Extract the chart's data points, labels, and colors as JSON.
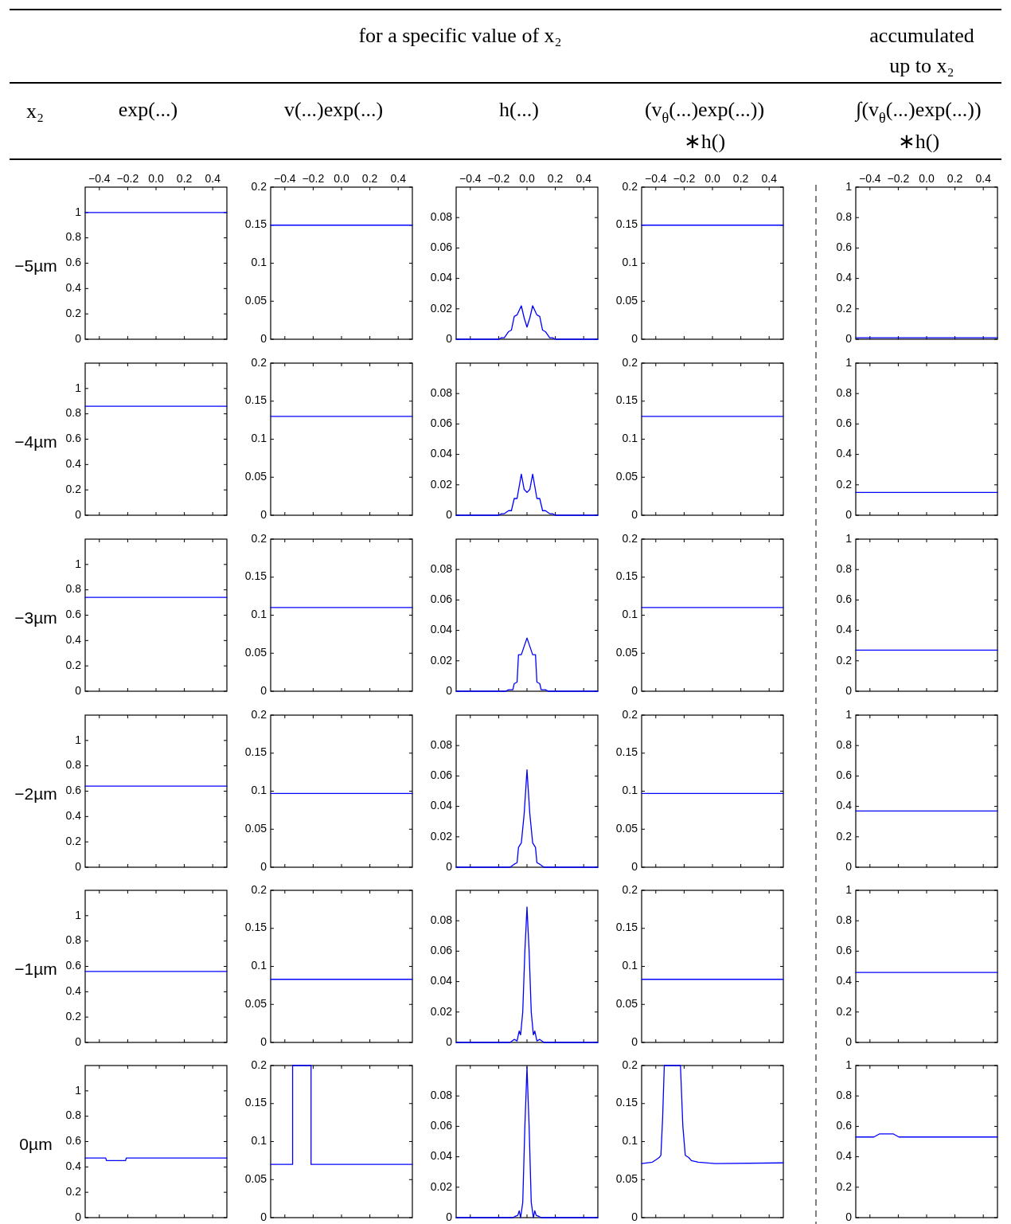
{
  "chart_data": [
    {
      "type": "line",
      "title": "exp(...)",
      "ylabel": "−5µm",
      "annotations": [
        "x₂",
        "for a specific value of x₂"
      ],
      "x": [
        -0.5,
        0.5
      ],
      "values": [
        1,
        1
      ],
      "color": "#0000ff",
      "xlim": [
        -0.5,
        0.5
      ],
      "xticks": [
        {
          "value": -0.4,
          "label": "−0.4"
        },
        {
          "value": -0.2,
          "label": "−0.2"
        },
        {
          "value": 0,
          "label": "0.0"
        },
        0.2,
        0.4
      ],
      "ylim": [
        0,
        1.2
      ],
      "yticks": [
        0,
        0.2,
        0.4,
        0.6,
        0.8,
        1
      ]
    },
    {
      "type": "line",
      "title": "v(...)exp(...)",
      "x": [
        -0.5,
        0.5
      ],
      "values": [
        0.15,
        0.15
      ],
      "color": "#0000ff",
      "xlim": [
        -0.5,
        0.5
      ],
      "xticks": [
        {
          "value": -0.4,
          "label": "−0.4"
        },
        {
          "value": -0.2,
          "label": "−0.2"
        },
        {
          "value": 0,
          "label": "0.0"
        },
        0.2,
        0.4
      ],
      "ylim": [
        0,
        0.2
      ],
      "yticks": [
        0,
        0.05,
        0.1,
        0.15,
        0.2
      ]
    },
    {
      "type": "line",
      "title": "h(...)",
      "x": [
        -0.5,
        -0.2,
        -0.18,
        -0.16,
        -0.13,
        -0.11,
        -0.09,
        -0.07,
        -0.04,
        -0.02,
        0,
        0.02,
        0.04,
        0.07,
        0.09,
        0.11,
        0.13,
        0.16,
        0.18,
        0.2,
        0.5
      ],
      "values": [
        0,
        0,
        0.001,
        0.001,
        0.005,
        0.006,
        0.015,
        0.016,
        0.022,
        0.014,
        0.008,
        0.014,
        0.022,
        0.016,
        0.015,
        0.006,
        0.005,
        0.001,
        0.001,
        0,
        0
      ],
      "color": "#0000ff",
      "xlim": [
        -0.5,
        0.5
      ],
      "xticks": [
        {
          "value": -0.4,
          "label": "−0.4"
        },
        {
          "value": -0.2,
          "label": "−0.2"
        },
        {
          "value": 0,
          "label": "0.0"
        },
        0.2,
        0.4
      ],
      "ylim": [
        0,
        0.1
      ],
      "yticks": [
        0,
        0.02,
        0.04,
        0.06,
        0.08
      ]
    },
    {
      "type": "line",
      "title": "(v$_{θ}$(...)exp(...))\n∗h()",
      "x": [
        -0.5,
        0.5
      ],
      "values": [
        0.15,
        0.15
      ],
      "color": "#0000ff",
      "xlim": [
        -0.5,
        0.5
      ],
      "xticks": [
        {
          "value": -0.4,
          "label": "−0.4"
        },
        {
          "value": -0.2,
          "label": "−0.2"
        },
        {
          "value": 0,
          "label": "0.0"
        },
        0.2,
        0.4
      ],
      "ylim": [
        0,
        0.2
      ],
      "yticks": [
        0,
        0.05,
        0.1,
        0.15,
        0.2
      ]
    },
    {
      "type": "line",
      "title": "∫(v$_{θ}$(...)exp(...))\n∗h()",
      "annotations": [
        "accumulated\nup to x₂"
      ],
      "x": [
        -0.5,
        0.5
      ],
      "values": [
        0.01,
        0.01
      ],
      "color": "#0000ff",
      "xlim": [
        -0.5,
        0.5
      ],
      "xticks": [
        {
          "value": -0.4,
          "label": "−0.4"
        },
        {
          "value": -0.2,
          "label": "−0.2"
        },
        {
          "value": 0,
          "label": "0.0"
        },
        0.2,
        0.4
      ],
      "ylim": [
        0,
        1
      ],
      "yticks": [
        0,
        0.2,
        0.4,
        0.6,
        0.8,
        1
      ]
    },
    {
      "type": "line",
      "ylabel": "−4µm",
      "x": [
        -0.5,
        0.5
      ],
      "values": [
        0.86,
        0.86
      ],
      "color": "#0000ff",
      "xlim": [
        -0.5,
        0.5
      ],
      "xticks": [
        -0.4,
        -0.2,
        0,
        0.2,
        0.4
      ],
      "ylim": [
        0,
        1.2
      ],
      "yticks": [
        0,
        0.2,
        0.4,
        0.6,
        0.8,
        1
      ],
      "tick_labels": "y"
    },
    {
      "type": "line",
      "x": [
        -0.5,
        0.5
      ],
      "values": [
        0.13,
        0.13
      ],
      "color": "#0000ff",
      "xlim": [
        -0.5,
        0.5
      ],
      "xticks": [
        -0.4,
        -0.2,
        0,
        0.2,
        0.4
      ],
      "ylim": [
        0,
        0.2
      ],
      "yticks": [
        0,
        0.05,
        0.1,
        0.15,
        0.2
      ],
      "tick_labels": "y"
    },
    {
      "type": "line",
      "x": [
        -0.5,
        -0.2,
        -0.18,
        -0.16,
        -0.13,
        -0.11,
        -0.09,
        -0.07,
        -0.04,
        -0.02,
        0,
        0.02,
        0.04,
        0.07,
        0.09,
        0.11,
        0.13,
        0.16,
        0.18,
        0.2,
        0.5
      ],
      "values": [
        0,
        0,
        0.001,
        0.001,
        0.003,
        0.003,
        0.011,
        0.011,
        0.027,
        0.017,
        0.015,
        0.017,
        0.027,
        0.011,
        0.011,
        0.003,
        0.003,
        0.001,
        0.001,
        0,
        0
      ],
      "color": "#0000ff",
      "xlim": [
        -0.5,
        0.5
      ],
      "xticks": [
        -0.4,
        -0.2,
        0,
        0.2,
        0.4
      ],
      "ylim": [
        0,
        0.1
      ],
      "yticks": [
        0,
        0.02,
        0.04,
        0.06,
        0.08
      ],
      "tick_labels": "y"
    },
    {
      "type": "line",
      "x": [
        -0.5,
        0.5
      ],
      "values": [
        0.13,
        0.13
      ],
      "color": "#0000ff",
      "xlim": [
        -0.5,
        0.5
      ],
      "xticks": [
        -0.4,
        -0.2,
        0,
        0.2,
        0.4
      ],
      "ylim": [
        0,
        0.2
      ],
      "yticks": [
        0,
        0.05,
        0.1,
        0.15,
        0.2
      ],
      "tick_labels": "y"
    },
    {
      "type": "line",
      "x": [
        -0.5,
        0.5
      ],
      "values": [
        0.15,
        0.15
      ],
      "color": "#0000ff",
      "xlim": [
        -0.5,
        0.5
      ],
      "xticks": [
        -0.4,
        -0.2,
        0,
        0.2,
        0.4
      ],
      "ylim": [
        0,
        1
      ],
      "yticks": [
        0,
        0.2,
        0.4,
        0.6,
        0.8,
        1
      ],
      "tick_labels": "y"
    },
    {
      "type": "line",
      "ylabel": "−3µm",
      "x": [
        -0.5,
        0.5
      ],
      "values": [
        0.74,
        0.74
      ],
      "color": "#0000ff",
      "xlim": [
        -0.5,
        0.5
      ],
      "xticks": [
        -0.4,
        -0.2,
        0,
        0.2,
        0.4
      ],
      "ylim": [
        0,
        1.2
      ],
      "yticks": [
        0,
        0.2,
        0.4,
        0.6,
        0.8,
        1
      ],
      "tick_labels": "y"
    },
    {
      "type": "line",
      "x": [
        -0.5,
        0.5
      ],
      "values": [
        0.11,
        0.11
      ],
      "color": "#0000ff",
      "xlim": [
        -0.5,
        0.5
      ],
      "xticks": [
        -0.4,
        -0.2,
        0,
        0.2,
        0.4
      ],
      "ylim": [
        0,
        0.2
      ],
      "yticks": [
        0,
        0.05,
        0.1,
        0.15,
        0.2
      ],
      "tick_labels": "y"
    },
    {
      "type": "line",
      "x": [
        -0.5,
        -0.15,
        -0.13,
        -0.1,
        -0.09,
        -0.07,
        -0.06,
        -0.04,
        0,
        0.04,
        0.06,
        0.07,
        0.09,
        0.1,
        0.13,
        0.15,
        0.5
      ],
      "values": [
        0,
        0,
        0.001,
        0.001,
        0.005,
        0.006,
        0.024,
        0.024,
        0.035,
        0.024,
        0.024,
        0.006,
        0.005,
        0.001,
        0.001,
        0,
        0
      ],
      "color": "#0000ff",
      "xlim": [
        -0.5,
        0.5
      ],
      "xticks": [
        -0.4,
        -0.2,
        0,
        0.2,
        0.4
      ],
      "ylim": [
        0,
        0.1
      ],
      "yticks": [
        0,
        0.02,
        0.04,
        0.06,
        0.08
      ],
      "tick_labels": "y"
    },
    {
      "type": "line",
      "x": [
        -0.5,
        0.5
      ],
      "values": [
        0.11,
        0.11
      ],
      "color": "#0000ff",
      "xlim": [
        -0.5,
        0.5
      ],
      "xticks": [
        -0.4,
        -0.2,
        0,
        0.2,
        0.4
      ],
      "ylim": [
        0,
        0.2
      ],
      "yticks": [
        0,
        0.05,
        0.1,
        0.15,
        0.2
      ],
      "tick_labels": "y"
    },
    {
      "type": "line",
      "x": [
        -0.5,
        0.5
      ],
      "values": [
        0.27,
        0.27
      ],
      "color": "#0000ff",
      "xlim": [
        -0.5,
        0.5
      ],
      "xticks": [
        -0.4,
        -0.2,
        0,
        0.2,
        0.4
      ],
      "ylim": [
        0,
        1
      ],
      "yticks": [
        0,
        0.2,
        0.4,
        0.6,
        0.8,
        1
      ],
      "tick_labels": "y"
    },
    {
      "type": "line",
      "ylabel": "−2µm",
      "x": [
        -0.5,
        0.5
      ],
      "values": [
        0.64,
        0.64
      ],
      "color": "#0000ff",
      "xlim": [
        -0.5,
        0.5
      ],
      "xticks": [
        -0.4,
        -0.2,
        0,
        0.2,
        0.4
      ],
      "ylim": [
        0,
        1.2
      ],
      "yticks": [
        0,
        0.2,
        0.4,
        0.6,
        0.8,
        1
      ],
      "tick_labels": "y"
    },
    {
      "type": "line",
      "x": [
        -0.5,
        0.5
      ],
      "values": [
        0.097,
        0.097
      ],
      "color": "#0000ff",
      "xlim": [
        -0.5,
        0.5
      ],
      "xticks": [
        -0.4,
        -0.2,
        0,
        0.2,
        0.4
      ],
      "ylim": [
        0,
        0.2
      ],
      "yticks": [
        0,
        0.05,
        0.1,
        0.15,
        0.2
      ],
      "tick_labels": "y"
    },
    {
      "type": "line",
      "x": [
        -0.5,
        -0.12,
        -0.09,
        -0.07,
        -0.06,
        -0.04,
        -0.02,
        0,
        0.02,
        0.04,
        0.06,
        0.07,
        0.09,
        0.12,
        0.5
      ],
      "values": [
        0,
        0,
        0.002,
        0.003,
        0.013,
        0.016,
        0.035,
        0.064,
        0.035,
        0.016,
        0.013,
        0.003,
        0.002,
        0,
        0
      ],
      "color": "#0000ff",
      "xlim": [
        -0.5,
        0.5
      ],
      "xticks": [
        -0.4,
        -0.2,
        0,
        0.2,
        0.4
      ],
      "ylim": [
        0,
        0.1
      ],
      "yticks": [
        0,
        0.02,
        0.04,
        0.06,
        0.08
      ],
      "tick_labels": "y"
    },
    {
      "type": "line",
      "x": [
        -0.5,
        0.5
      ],
      "values": [
        0.097,
        0.097
      ],
      "color": "#0000ff",
      "xlim": [
        -0.5,
        0.5
      ],
      "xticks": [
        -0.4,
        -0.2,
        0,
        0.2,
        0.4
      ],
      "ylim": [
        0,
        0.2
      ],
      "yticks": [
        0,
        0.05,
        0.1,
        0.15,
        0.2
      ],
      "tick_labels": "y"
    },
    {
      "type": "line",
      "x": [
        -0.5,
        0.5
      ],
      "values": [
        0.37,
        0.37
      ],
      "color": "#0000ff",
      "xlim": [
        -0.5,
        0.5
      ],
      "xticks": [
        -0.4,
        -0.2,
        0,
        0.2,
        0.4
      ],
      "ylim": [
        0,
        1
      ],
      "yticks": [
        0,
        0.2,
        0.4,
        0.6,
        0.8,
        1
      ],
      "tick_labels": "y"
    },
    {
      "type": "line",
      "ylabel": "−1µm",
      "x": [
        -0.5,
        0.5
      ],
      "values": [
        0.56,
        0.56
      ],
      "color": "#0000ff",
      "xlim": [
        -0.5,
        0.5
      ],
      "xticks": [
        -0.4,
        -0.2,
        0,
        0.2,
        0.4
      ],
      "ylim": [
        0,
        1.2
      ],
      "yticks": [
        0,
        0.2,
        0.4,
        0.6,
        0.8,
        1
      ],
      "tick_labels": "y"
    },
    {
      "type": "line",
      "x": [
        -0.5,
        0.5
      ],
      "values": [
        0.083,
        0.083
      ],
      "color": "#0000ff",
      "xlim": [
        -0.5,
        0.5
      ],
      "xticks": [
        -0.4,
        -0.2,
        0,
        0.2,
        0.4
      ],
      "ylim": [
        0,
        0.2
      ],
      "yticks": [
        0,
        0.05,
        0.1,
        0.15,
        0.2
      ],
      "tick_labels": "y"
    },
    {
      "type": "line",
      "x": [
        -0.5,
        -0.12,
        -0.09,
        -0.07,
        -0.055,
        -0.045,
        -0.03,
        -0.015,
        0,
        0.015,
        0.03,
        0.045,
        0.055,
        0.07,
        0.09,
        0.12,
        0.5
      ],
      "values": [
        0,
        0,
        0.002,
        0.001,
        0.0075,
        0.005,
        0.02,
        0.06,
        0.089,
        0.06,
        0.02,
        0.005,
        0.0075,
        0.001,
        0.002,
        0,
        0
      ],
      "color": "#0000ff",
      "xlim": [
        -0.5,
        0.5
      ],
      "xticks": [
        -0.4,
        -0.2,
        0,
        0.2,
        0.4
      ],
      "ylim": [
        0,
        0.1
      ],
      "yticks": [
        0,
        0.02,
        0.04,
        0.06,
        0.08
      ],
      "tick_labels": "y"
    },
    {
      "type": "line",
      "x": [
        -0.5,
        0.5
      ],
      "values": [
        0.083,
        0.083
      ],
      "color": "#0000ff",
      "xlim": [
        -0.5,
        0.5
      ],
      "xticks": [
        -0.4,
        -0.2,
        0,
        0.2,
        0.4
      ],
      "ylim": [
        0,
        0.2
      ],
      "yticks": [
        0,
        0.05,
        0.1,
        0.15,
        0.2
      ],
      "tick_labels": "y"
    },
    {
      "type": "line",
      "x": [
        -0.5,
        0.5
      ],
      "values": [
        0.46,
        0.46
      ],
      "color": "#0000ff",
      "xlim": [
        -0.5,
        0.5
      ],
      "xticks": [
        -0.4,
        -0.2,
        0,
        0.2,
        0.4
      ],
      "ylim": [
        0,
        1
      ],
      "yticks": [
        0,
        0.2,
        0.4,
        0.6,
        0.8,
        1
      ],
      "tick_labels": "y"
    },
    {
      "type": "line",
      "ylabel": "0µm",
      "x": [
        -0.5,
        -0.355,
        -0.35,
        -0.215,
        -0.21,
        0.5
      ],
      "values": [
        0.47,
        0.47,
        0.45,
        0.45,
        0.47,
        0.47
      ],
      "color": "#0000ff",
      "xlim": [
        -0.5,
        0.5
      ],
      "xticks": [
        -0.4,
        -0.2,
        0,
        0.2,
        0.4
      ],
      "ylim": [
        0,
        1.2
      ],
      "yticks": [
        0,
        0.2,
        0.4,
        0.6,
        0.8,
        1
      ],
      "tick_labels": "y"
    },
    {
      "type": "line",
      "x": [
        -0.5,
        -0.345,
        -0.345,
        -0.215,
        -0.215,
        0.5
      ],
      "values": [
        0.07,
        0.07,
        0.2,
        0.2,
        0.07,
        0.07
      ],
      "color": "#0000ff",
      "xlim": [
        -0.5,
        0.5
      ],
      "xticks": [
        -0.4,
        -0.2,
        0,
        0.2,
        0.4
      ],
      "ylim": [
        0,
        0.2
      ],
      "yticks": [
        0,
        0.05,
        0.1,
        0.15,
        0.2
      ],
      "tick_labels": "y"
    },
    {
      "type": "line",
      "x": [
        -0.5,
        -0.1,
        -0.08,
        -0.065,
        -0.055,
        -0.045,
        -0.03,
        -0.015,
        0,
        0.015,
        0.03,
        0.045,
        0.055,
        0.065,
        0.08,
        0.1,
        0.5
      ],
      "values": [
        0,
        0,
        0.001,
        0.0015,
        0.0045,
        0,
        0.01,
        0.06,
        0.099,
        0.06,
        0.01,
        0,
        0.0045,
        0.0015,
        0.001,
        0,
        0
      ],
      "color": "#0000ff",
      "xlim": [
        -0.5,
        0.5
      ],
      "xticks": [
        -0.4,
        -0.2,
        0,
        0.2,
        0.4
      ],
      "ylim": [
        0,
        0.1
      ],
      "yticks": [
        0,
        0.02,
        0.04,
        0.06,
        0.08
      ],
      "tick_labels": "y"
    },
    {
      "type": "line",
      "x": [
        -0.5,
        -0.424,
        -0.4,
        -0.376,
        -0.364,
        -0.352,
        -0.34,
        -0.226,
        -0.209,
        -0.192,
        -0.168,
        -0.149,
        -0.1,
        0.02,
        0.5
      ],
      "values": [
        0.071,
        0.073,
        0.076,
        0.079,
        0.082,
        0.13,
        0.2,
        0.2,
        0.12,
        0.082,
        0.079,
        0.075,
        0.073,
        0.071,
        0.072
      ],
      "color": "#0000ff",
      "xlim": [
        -0.5,
        0.5
      ],
      "xticks": [
        -0.4,
        -0.2,
        0,
        0.2,
        0.4
      ],
      "ylim": [
        0,
        0.2
      ],
      "yticks": [
        0,
        0.05,
        0.1,
        0.15,
        0.2
      ],
      "tick_labels": "y"
    },
    {
      "type": "line",
      "x": [
        -0.5,
        -0.372,
        -0.334,
        -0.234,
        -0.196,
        0.5
      ],
      "values": [
        0.53,
        0.53,
        0.55,
        0.55,
        0.53,
        0.53
      ],
      "color": "#0000ff",
      "xlim": [
        -0.5,
        0.5
      ],
      "xticks": [
        -0.4,
        -0.2,
        0,
        0.2,
        0.4
      ],
      "ylim": [
        0,
        1
      ],
      "yticks": [
        0,
        0.2,
        0.4,
        0.6,
        0.8,
        1
      ],
      "tick_labels": "y"
    }
  ]
}
